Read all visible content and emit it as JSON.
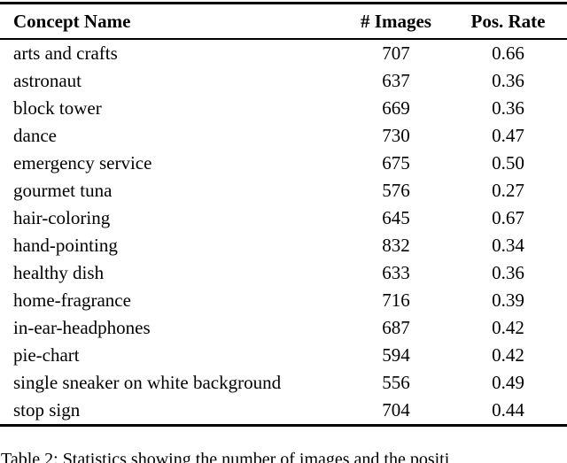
{
  "table": {
    "columns": [
      "Concept Name",
      "# Images",
      "Pos. Rate"
    ],
    "rows": [
      {
        "concept": "arts and crafts",
        "images": "707",
        "pos_rate": "0.66"
      },
      {
        "concept": "astronaut",
        "images": "637",
        "pos_rate": "0.36"
      },
      {
        "concept": "block tower",
        "images": "669",
        "pos_rate": "0.36"
      },
      {
        "concept": "dance",
        "images": "730",
        "pos_rate": "0.47"
      },
      {
        "concept": "emergency service",
        "images": "675",
        "pos_rate": "0.50"
      },
      {
        "concept": "gourmet tuna",
        "images": "576",
        "pos_rate": "0.27"
      },
      {
        "concept": "hair-coloring",
        "images": "645",
        "pos_rate": "0.67"
      },
      {
        "concept": "hand-pointing",
        "images": "832",
        "pos_rate": "0.34"
      },
      {
        "concept": "healthy dish",
        "images": "633",
        "pos_rate": "0.36"
      },
      {
        "concept": "home-fragrance",
        "images": "716",
        "pos_rate": "0.39"
      },
      {
        "concept": "in-ear-headphones",
        "images": "687",
        "pos_rate": "0.42"
      },
      {
        "concept": "pie-chart",
        "images": "594",
        "pos_rate": "0.42"
      },
      {
        "concept": "single sneaker on white background",
        "images": "556",
        "pos_rate": "0.49"
      },
      {
        "concept": "stop sign",
        "images": "704",
        "pos_rate": "0.44"
      }
    ]
  },
  "caption": "Table 2: Statistics showing the number of images and the positi",
  "colors": {
    "text": "#000000",
    "background": "#ffffff",
    "rule": "#000000"
  }
}
